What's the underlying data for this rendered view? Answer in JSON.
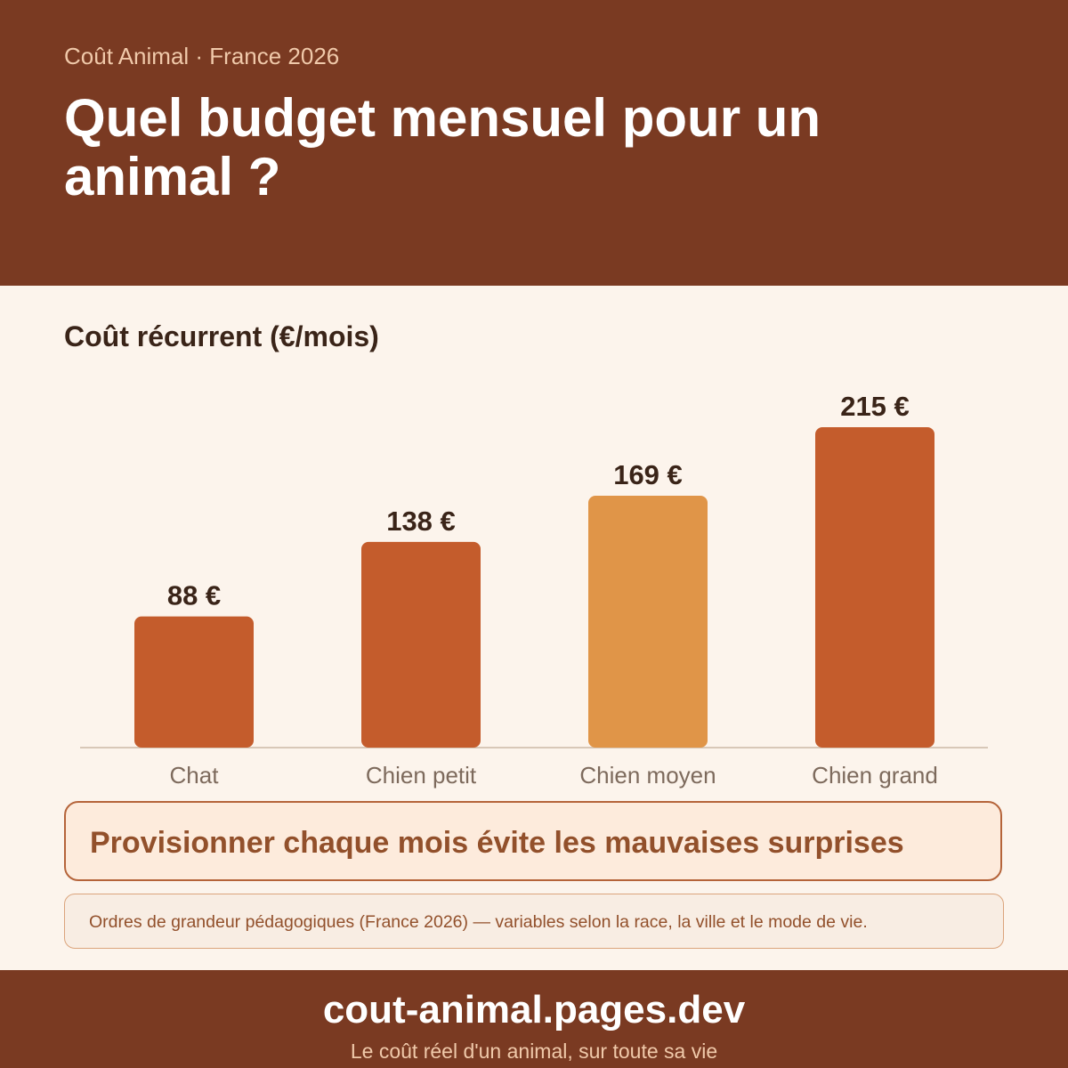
{
  "header": {
    "kicker": "Coût Animal · France 2026",
    "title": "Quel budget mensuel pour un animal ?"
  },
  "chart_data": {
    "type": "bar",
    "title": "Coût récurrent (€/mois)",
    "categories": [
      "Chat",
      "Chien petit",
      "Chien moyen",
      "Chien grand"
    ],
    "values": [
      88,
      138,
      169,
      215
    ],
    "value_labels": [
      "88 €",
      "138 €",
      "169 €",
      "215 €"
    ],
    "colors": [
      "#c45c2c",
      "#c45c2c",
      "#e09548",
      "#c45c2c"
    ],
    "ylim": [
      0,
      240
    ],
    "grid": false
  },
  "callout": "Provisionner chaque mois évite les mauvaises surprises",
  "note": "Ordres de grandeur pédagogiques (France 2026) — variables selon la race, la ville et le mode de vie.",
  "footer": {
    "domain": "cout-animal.pages.dev",
    "tagline": "Le coût réel d'un animal, sur toute sa vie"
  }
}
